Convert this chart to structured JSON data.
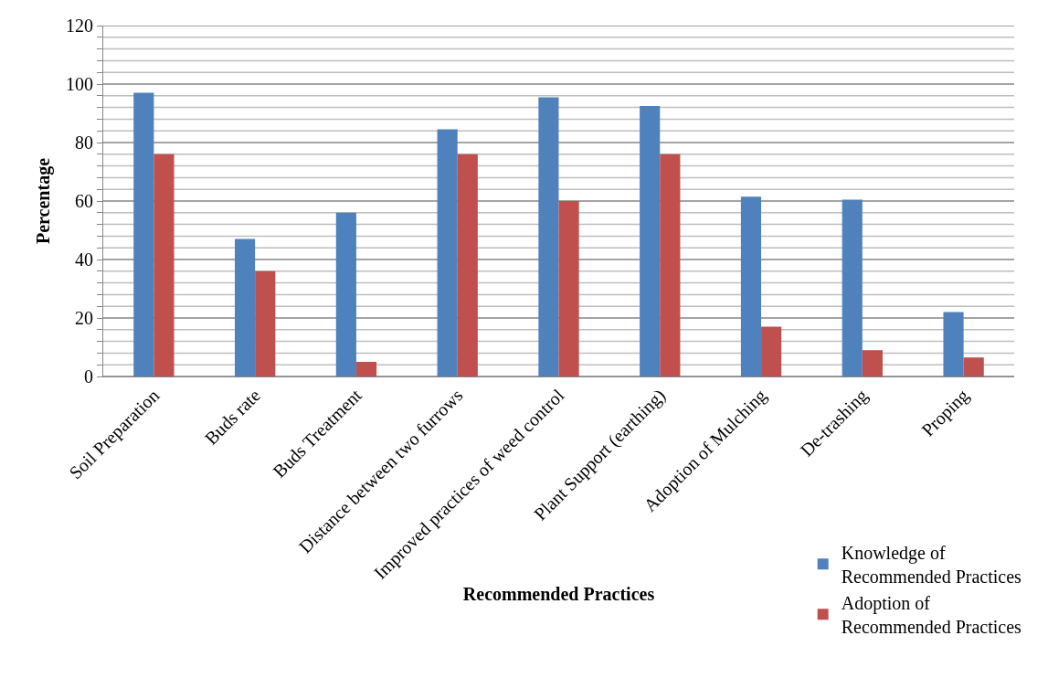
{
  "chart_data": {
    "type": "bar",
    "xlabel": "Recommended Practices",
    "ylabel": "Percentage",
    "categories": [
      "Soil Preparation",
      "Buds rate",
      "Buds Treatment",
      "Distance between two furrows",
      "Improved practices of weed control",
      "Plant Support (earthing)",
      "Adoption of Mulching",
      "De-trashing",
      "Proping"
    ],
    "series": [
      {
        "name": "Knowledge of Recommended Practices",
        "color": "#4f81bd",
        "values": [
          97,
          47,
          56,
          84.5,
          95.5,
          92.5,
          61.5,
          60.5,
          22
        ]
      },
      {
        "name": "Adoption of Recommended Practices",
        "color": "#c0504d",
        "values": [
          76,
          36,
          5,
          76,
          60,
          76,
          17,
          9,
          6.5
        ]
      }
    ],
    "ylim": [
      0,
      120
    ],
    "yticks": [
      0,
      {
        "value": 4,
        "label": null
      },
      {
        "value": 8,
        "label": null
      },
      {
        "value": 12,
        "label": null
      },
      {
        "value": 16,
        "label": null
      },
      20,
      {
        "value": 24,
        "label": null
      },
      {
        "value": 28,
        "label": null
      },
      {
        "value": 32,
        "label": null
      },
      {
        "value": 36,
        "label": null
      },
      40,
      {
        "value": 44,
        "label": null
      },
      {
        "value": 48,
        "label": null
      },
      {
        "value": 52,
        "label": null
      },
      {
        "value": 56,
        "label": null
      },
      60,
      {
        "value": 64,
        "label": null
      },
      {
        "value": 68,
        "label": null
      },
      {
        "value": 72,
        "label": null
      },
      {
        "value": 76,
        "label": null
      },
      80,
      {
        "value": 84,
        "label": null
      },
      {
        "value": 88,
        "label": null
      },
      {
        "value": 92,
        "label": null
      },
      {
        "value": 96,
        "label": null
      },
      100,
      {
        "value": 104,
        "label": null
      },
      {
        "value": 108,
        "label": null
      },
      {
        "value": 112,
        "label": null
      },
      {
        "value": 116,
        "label": null
      },
      120
    ],
    "grid": "y",
    "legend": "bottom right"
  }
}
